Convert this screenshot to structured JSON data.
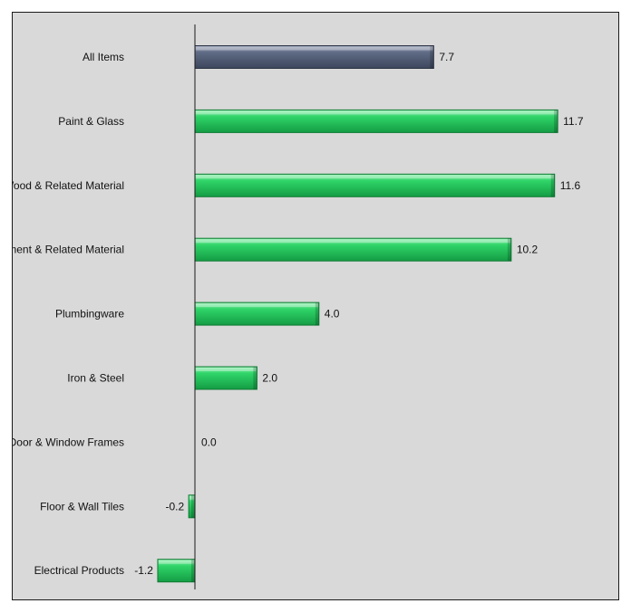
{
  "chart_data": {
    "type": "bar",
    "orientation": "horizontal",
    "categories": [
      "All Items",
      "Paint & Glass",
      "Wood & Related Material",
      "Cement & Related Material",
      "Plumbingware",
      "Iron & Steel",
      "Door & Window Frames",
      "Floor & Wall Tiles",
      "Electrical Products"
    ],
    "values": [
      7.7,
      11.7,
      11.6,
      10.2,
      4.0,
      2.0,
      0.0,
      -0.2,
      -1.2
    ],
    "value_labels": [
      "7.7",
      "11.7",
      "11.6",
      "10.2",
      "4.0",
      "2.0",
      "0.0",
      "-0.2",
      "-1.2"
    ],
    "xlim": [
      -1.2,
      11.7
    ],
    "grid": false,
    "legend": "none",
    "colors": {
      "highlight": "#5a6680",
      "bar": "#22c55e",
      "background": "#d9d9d9",
      "axis": "#1a1a1a"
    },
    "highlight_categories": [
      "All Items"
    ]
  }
}
